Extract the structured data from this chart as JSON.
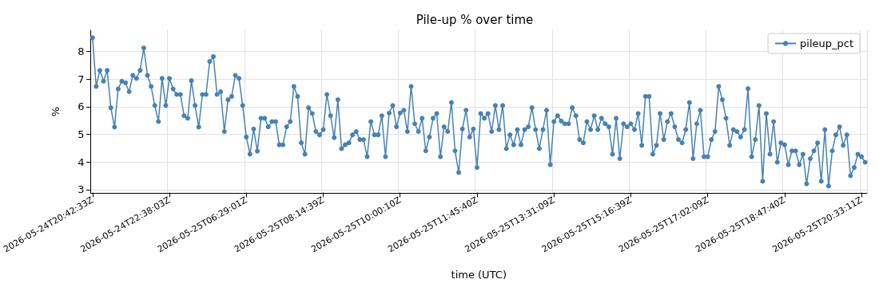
{
  "chart_data": {
    "type": "line",
    "title": "Pile-up % over time",
    "xlabel": "time (UTC)",
    "ylabel": "%",
    "categories": [
      "2026-05-24T20:42:33Z",
      null,
      null,
      null,
      null,
      null,
      null,
      null,
      null,
      null,
      null,
      null,
      null,
      null,
      null,
      null,
      null,
      null,
      null,
      null,
      null,
      "2026-05-24T22:38:03Z",
      null,
      null,
      null,
      null,
      null,
      null,
      null,
      null,
      null,
      null,
      null,
      null,
      null,
      null,
      null,
      null,
      null,
      null,
      null,
      null,
      "2026-05-25T06:29:01Z",
      null,
      null,
      null,
      null,
      null,
      null,
      null,
      null,
      null,
      null,
      null,
      null,
      null,
      null,
      null,
      null,
      null,
      null,
      null,
      null,
      "2026-05-25T08:14:39Z",
      null,
      null,
      null,
      null,
      null,
      null,
      null,
      null,
      null,
      null,
      null,
      null,
      null,
      null,
      null,
      null,
      null,
      null,
      null,
      null,
      "2026-05-25T10:00:10Z",
      null,
      null,
      null,
      null,
      null,
      null,
      null,
      null,
      null,
      null,
      null,
      null,
      null,
      null,
      null,
      null,
      null,
      null,
      null,
      null,
      "2026-05-25T11:45:40Z",
      null,
      null,
      null,
      null,
      null,
      null,
      null,
      null,
      null,
      null,
      null,
      null,
      null,
      null,
      null,
      null,
      null,
      null,
      null,
      null,
      "2026-05-25T13:31:09Z",
      null,
      null,
      null,
      null,
      null,
      null,
      null,
      null,
      null,
      null,
      null,
      null,
      null,
      null,
      null,
      null,
      null,
      null,
      null,
      null,
      "2026-05-25T15:16:39Z",
      null,
      null,
      null,
      null,
      null,
      null,
      null,
      null,
      null,
      null,
      null,
      null,
      null,
      null,
      null,
      null,
      null,
      null,
      null,
      null,
      "2026-05-25T17:02:09Z",
      null,
      null,
      null,
      null,
      null,
      null,
      null,
      null,
      null,
      null,
      null,
      null,
      null,
      null,
      null,
      null,
      null,
      null,
      null,
      null,
      "2026-05-25T18:47:40Z",
      null,
      null,
      null,
      null,
      null,
      null,
      null,
      null,
      null,
      null,
      null,
      null,
      null,
      null,
      null,
      null,
      null,
      null,
      null,
      null,
      "2026-05-25T20:33:11Z",
      null
    ],
    "series": [
      {
        "name": "pileup_pct",
        "color": "#4682b4",
        "values": [
          8.49,
          6.73,
          7.31,
          6.92,
          7.31,
          5.96,
          5.26,
          6.64,
          6.92,
          6.86,
          6.54,
          7.13,
          7.02,
          7.31,
          8.12,
          7.13,
          6.73,
          6.04,
          5.46,
          7.02,
          6.04,
          7.02,
          6.64,
          6.44,
          6.44,
          5.67,
          5.58,
          6.94,
          6.04,
          5.26,
          6.44,
          6.44,
          7.63,
          7.81,
          6.44,
          6.54,
          5.1,
          6.25,
          6.37,
          7.13,
          7.02,
          6.04,
          4.9,
          4.28,
          5.19,
          4.39,
          5.58,
          5.58,
          5.27,
          5.46,
          5.46,
          4.62,
          4.62,
          5.27,
          5.46,
          6.73,
          6.37,
          4.69,
          4.28,
          5.96,
          5.75,
          5.1,
          4.98,
          5.17,
          6.44,
          5.67,
          4.88,
          6.25,
          4.48,
          4.62,
          4.69,
          4.98,
          5.1,
          4.81,
          4.81,
          4.19,
          5.46,
          4.98,
          4.98,
          5.67,
          4.19,
          5.77,
          6.04,
          5.27,
          5.77,
          5.87,
          5.1,
          6.73,
          5.38,
          5.1,
          5.58,
          4.4,
          4.9,
          5.58,
          5.75,
          4.19,
          5.27,
          5.1,
          6.15,
          4.4,
          3.62,
          5.19,
          5.87,
          4.9,
          5.19,
          3.8,
          5.75,
          5.58,
          5.75,
          5.1,
          6.04,
          5.17,
          6.04,
          4.48,
          4.98,
          4.62,
          5.17,
          4.62,
          5.17,
          5.27,
          5.96,
          5.17,
          4.48,
          5.17,
          5.87,
          3.9,
          5.46,
          5.67,
          5.48,
          5.38,
          5.38,
          5.96,
          5.67,
          4.81,
          4.69,
          5.46,
          5.17,
          5.67,
          5.17,
          5.58,
          5.38,
          5.27,
          4.28,
          5.58,
          4.12,
          5.38,
          5.27,
          5.38,
          5.17,
          5.75,
          4.6,
          6.37,
          6.37,
          4.28,
          4.6,
          5.75,
          4.81,
          5.46,
          5.75,
          5.27,
          4.81,
          4.69,
          5.17,
          6.15,
          4.12,
          5.38,
          5.87,
          4.19,
          4.19,
          4.81,
          5.1,
          6.73,
          6.25,
          5.58,
          4.6,
          5.17,
          5.1,
          4.9,
          5.17,
          6.65,
          4.19,
          4.81,
          6.04,
          3.3,
          5.75,
          4.28,
          5.46,
          3.99,
          4.69,
          4.62,
          3.9,
          4.4,
          4.4,
          3.9,
          4.28,
          3.21,
          4.12,
          4.4,
          4.69,
          3.3,
          5.17,
          3.13,
          4.4,
          4.98,
          5.27,
          4.6,
          4.98,
          3.5,
          3.8,
          4.28,
          4.19,
          3.99
        ]
      }
    ],
    "ylim": [
      2.88,
      8.76
    ],
    "yticks": [
      3,
      4,
      5,
      6,
      7,
      8
    ],
    "grid": true,
    "legend": "top right",
    "marker": "circle",
    "line_style": "solid"
  }
}
